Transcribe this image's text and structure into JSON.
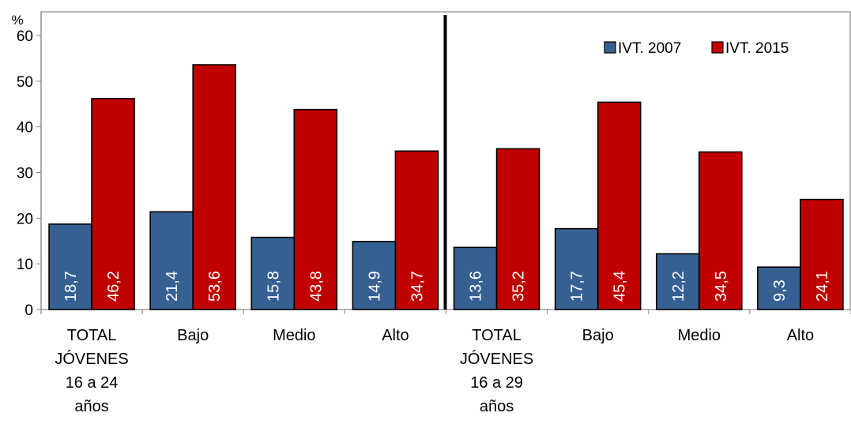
{
  "chart_data": {
    "type": "bar",
    "title": "",
    "ylabel": "%",
    "xlabel": "",
    "ylim": [
      0,
      60
    ],
    "yticks": [
      0,
      10,
      20,
      30,
      40,
      50,
      60
    ],
    "grid": false,
    "legend_position": "top-right",
    "categories": [
      [
        "TOTAL",
        "JÓVENES",
        "16 a 24",
        "años"
      ],
      [
        "Bajo"
      ],
      [
        "Medio"
      ],
      [
        "Alto"
      ],
      [
        "TOTAL",
        "JÓVENES",
        "16 a 29",
        "años"
      ],
      [
        "Bajo"
      ],
      [
        "Medio"
      ],
      [
        "Alto"
      ]
    ],
    "series": [
      {
        "name": "IVT. 2007",
        "color": "#376092",
        "values": [
          18.7,
          21.4,
          15.8,
          14.9,
          13.6,
          17.7,
          12.2,
          9.3
        ],
        "labels": [
          "18,7",
          "21,4",
          "15,8",
          "14,9",
          "13,6",
          "17,7",
          "12,2",
          "9,3"
        ]
      },
      {
        "name": "IVT. 2015",
        "color": "#C00000",
        "values": [
          46.2,
          53.6,
          43.8,
          34.7,
          35.2,
          45.4,
          34.5,
          24.1
        ],
        "labels": [
          "46,2",
          "53,6",
          "43,8",
          "34,7",
          "35,2",
          "45,4",
          "34,5",
          "24,1"
        ]
      }
    ],
    "divider_after_category": 4
  }
}
